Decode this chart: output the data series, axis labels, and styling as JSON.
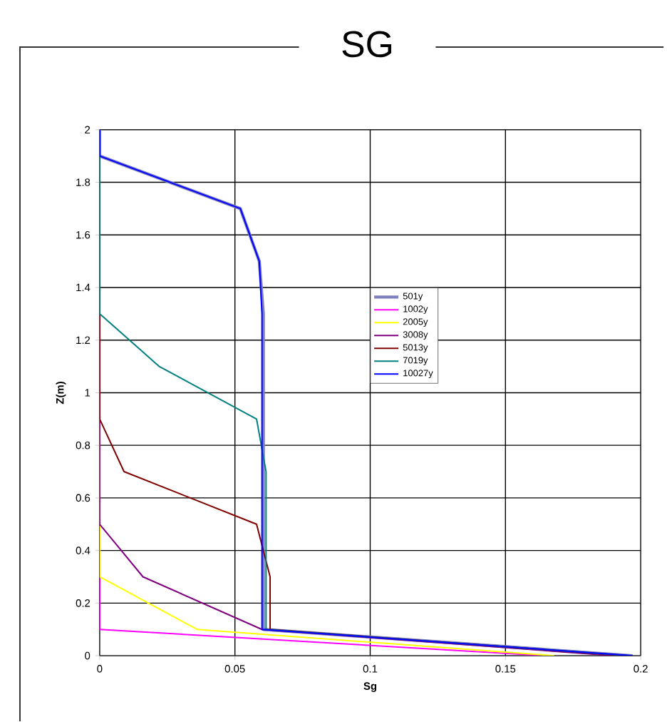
{
  "chart_data": {
    "type": "line",
    "title": "SG",
    "xlabel": "Sg",
    "ylabel": "Z(m)",
    "xlim": [
      0,
      0.2
    ],
    "xticks": [
      0,
      0.05,
      0.1,
      0.15,
      {
        "value": 0.2,
        "label": "0.2"
      }
    ],
    "ylim": [
      0,
      2
    ],
    "yticks": [
      0,
      0.2,
      0.4,
      0.6,
      0.8,
      1,
      1.2,
      1.4,
      1.6,
      1.8,
      2
    ],
    "grid": true,
    "legend": "right",
    "marker": "none",
    "line_style": "solid",
    "series": [
      {
        "name": "501y",
        "color": "#7f7fbf",
        "x": [
          0,
          0,
          0.052,
          0.059,
          0.0605,
          0.0605,
          0.197
        ],
        "values": [
          2,
          1.9,
          1.7,
          1.5,
          1.3,
          0.1,
          0
        ]
      },
      {
        "name": "1002y",
        "color": "#ff00ff",
        "x": [
          0,
          0,
          0.165
        ],
        "values": [
          2,
          0.1,
          0
        ]
      },
      {
        "name": "2005y",
        "color": "#ffff00",
        "x": [
          0,
          0,
          0.036,
          0.168
        ],
        "values": [
          2,
          0.3,
          0.1,
          0
        ]
      },
      {
        "name": "3008y",
        "color": "#800080",
        "x": [
          0,
          0,
          0.016,
          0.06,
          0.19
        ],
        "values": [
          2,
          0.5,
          0.3,
          0.1,
          0
        ]
      },
      {
        "name": "5013y",
        "color": "#800000",
        "x": [
          0,
          0,
          0.009,
          0.058,
          0.063,
          0.063,
          0.195
        ],
        "values": [
          2,
          0.9,
          0.7,
          0.5,
          0.3,
          0.1,
          0
        ]
      },
      {
        "name": "7019y",
        "color": "#008080",
        "x": [
          0,
          0,
          0.022,
          0.058,
          0.0615,
          0.0615,
          0.196
        ],
        "values": [
          2,
          1.3,
          1.1,
          0.9,
          0.7,
          0.1,
          0
        ]
      },
      {
        "name": "10027y",
        "color": "#0000ff",
        "x": [
          0,
          0,
          0.052,
          0.059,
          0.06,
          0.06,
          0.197
        ],
        "values": [
          2,
          1.9,
          1.7,
          1.5,
          1.3,
          0.1,
          0
        ]
      }
    ]
  }
}
